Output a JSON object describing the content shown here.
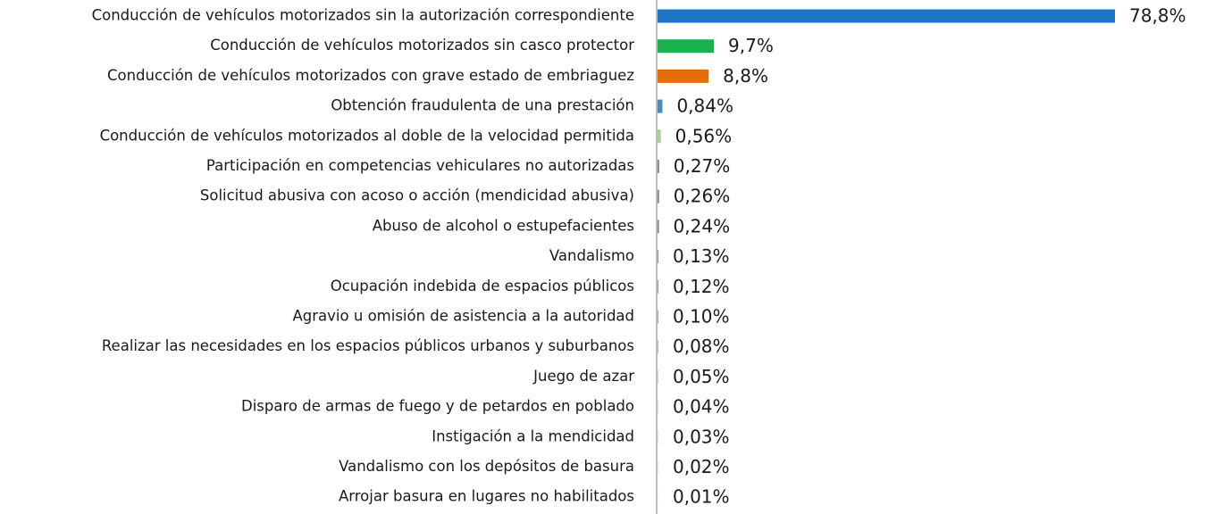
{
  "chart_data": {
    "type": "hbar",
    "categories": [
      "Conducción de vehículos motorizados sin la autorización correspondiente",
      "Conducción de vehículos motorizados sin casco protector",
      "Conducción de vehículos motorizados con grave estado de embriaguez",
      "Obtención fraudulenta de una prestación",
      "Conducción de vehículos motorizados al doble de la velocidad permitida",
      "Participación en competencias vehiculares no autorizadas",
      "Solicitud abusiva con acoso o acción (mendicidad abusiva)",
      "Abuso de alcohol o estupefacientes",
      "Vandalismo",
      "Ocupación indebida de espacios públicos",
      "Agravio u omisión de asistencia a la autoridad",
      "Realizar las necesidades en los espacios públicos urbanos y suburbanos",
      "Juego de azar",
      "Disparo de armas de fuego y de petardos en poblado",
      "Instigación a la mendicidad",
      "Vandalismo con los depósitos de basura",
      "Arrojar basura en lugares no habilitados"
    ],
    "values": [
      78.8,
      9.7,
      8.8,
      0.84,
      0.56,
      0.27,
      0.26,
      0.24,
      0.13,
      0.12,
      0.1,
      0.08,
      0.05,
      0.04,
      0.03,
      0.02,
      0.01
    ],
    "value_labels": [
      "78,8%",
      "9,7%",
      "8,8%",
      "0,84%",
      "0,56%",
      "0,27%",
      "0,26%",
      "0,24%",
      "0,13%",
      "0,12%",
      "0,10%",
      "0,08%",
      "0,05%",
      "0,04%",
      "0,03%",
      "0,02%",
      "0,01%"
    ],
    "colors": [
      "#1f74c6",
      "#1bb14f",
      "#e46c0a",
      "#4a8bbd",
      "#a9d18e",
      "#7f7f7f",
      "#7f7f7f",
      "#7f7f7f",
      "#7f7f7f",
      "#7f7f7f",
      "#7f7f7f",
      "#7f7f7f",
      "#7f7f7f",
      "#7f7f7f",
      "#7f7f7f",
      "#7f7f7f",
      "#7f7f7f"
    ]
  }
}
